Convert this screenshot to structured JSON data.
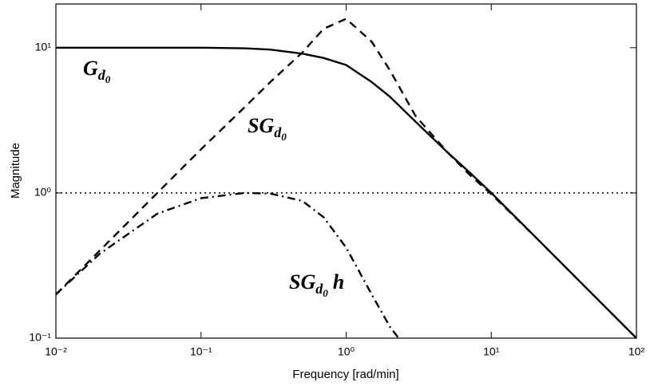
{
  "chart_data": {
    "type": "line",
    "x_label": "Frequency [rad/min]",
    "y_label": "Magnitude",
    "log_x": true,
    "log_y": true,
    "xlim": [
      0.01,
      100
    ],
    "ylim": [
      0.1,
      20
    ],
    "xticks": [
      {
        "value": 0.01,
        "label": "10⁻²"
      },
      {
        "value": 0.1,
        "label": "10⁻¹"
      },
      {
        "value": 1,
        "label": "10⁰"
      },
      {
        "value": 10,
        "label": "10¹"
      },
      {
        "value": 100,
        "label": "10²"
      }
    ],
    "yticks": [
      {
        "value": 0.1,
        "label": "10⁻¹"
      },
      {
        "value": 1,
        "label": "10⁰"
      },
      {
        "value": 10,
        "label": "10¹"
      }
    ],
    "reference_line": 1,
    "series": [
      {
        "style": "solid",
        "color": "#000000",
        "x": [
          0.01,
          0.02,
          0.05,
          0.1,
          0.2,
          0.3,
          0.5,
          0.7,
          1,
          1.5,
          2,
          3,
          5,
          7,
          10,
          20,
          50,
          100
        ],
        "values": [
          10,
          10,
          10,
          10,
          9.9,
          9.7,
          9.1,
          8.5,
          7.6,
          5.8,
          4.6,
          3.1,
          1.9,
          1.4,
          1.0,
          0.5,
          0.2,
          0.1
        ]
      },
      {
        "style": "dashed",
        "color": "#000000",
        "x": [
          0.01,
          0.02,
          0.05,
          0.1,
          0.2,
          0.3,
          0.5,
          0.7,
          1,
          1.5,
          2,
          3,
          5,
          7,
          10,
          20,
          50,
          100
        ],
        "values": [
          0.2,
          0.4,
          1,
          2,
          3.9,
          5.8,
          9.3,
          13.5,
          15.8,
          11,
          7,
          3.4,
          1.9,
          1.35,
          0.98,
          0.5,
          0.2,
          0.1
        ]
      },
      {
        "style": "dashdot",
        "color": "#000000",
        "x": [
          0.01,
          0.02,
          0.05,
          0.1,
          0.2,
          0.3,
          0.5,
          0.7,
          1,
          1.5,
          2,
          2.3
        ],
        "values": [
          0.2,
          0.38,
          0.72,
          0.92,
          1.0,
          0.99,
          0.88,
          0.68,
          0.42,
          0.2,
          0.12,
          0.1
        ]
      }
    ],
    "annotations": [
      {
        "text": "G",
        "sub": "d",
        "subsub": "0"
      },
      {
        "text": "SG",
        "sub": "d",
        "subsub": "0"
      },
      {
        "text": "SG",
        "sub": "d",
        "subsub": "0",
        "suffix": "h"
      }
    ]
  }
}
